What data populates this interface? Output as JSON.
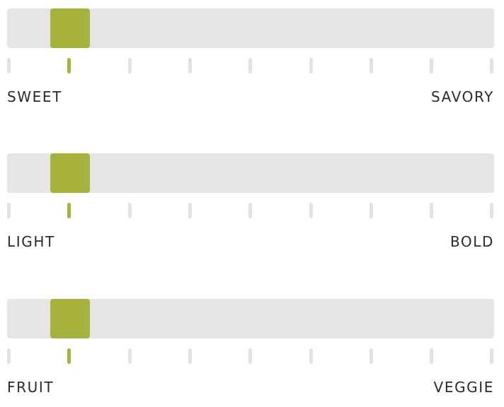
{
  "accent_color": "#a6b23b",
  "track_color": "#e6e5e4",
  "steps": 9,
  "sliders": [
    {
      "left_label": "SWEET",
      "right_label": "SAVORY",
      "value_index": 1
    },
    {
      "left_label": "LIGHT",
      "right_label": "BOLD",
      "value_index": 1
    },
    {
      "left_label": "FRUIT",
      "right_label": "VEGGIE",
      "value_index": 1
    }
  ]
}
